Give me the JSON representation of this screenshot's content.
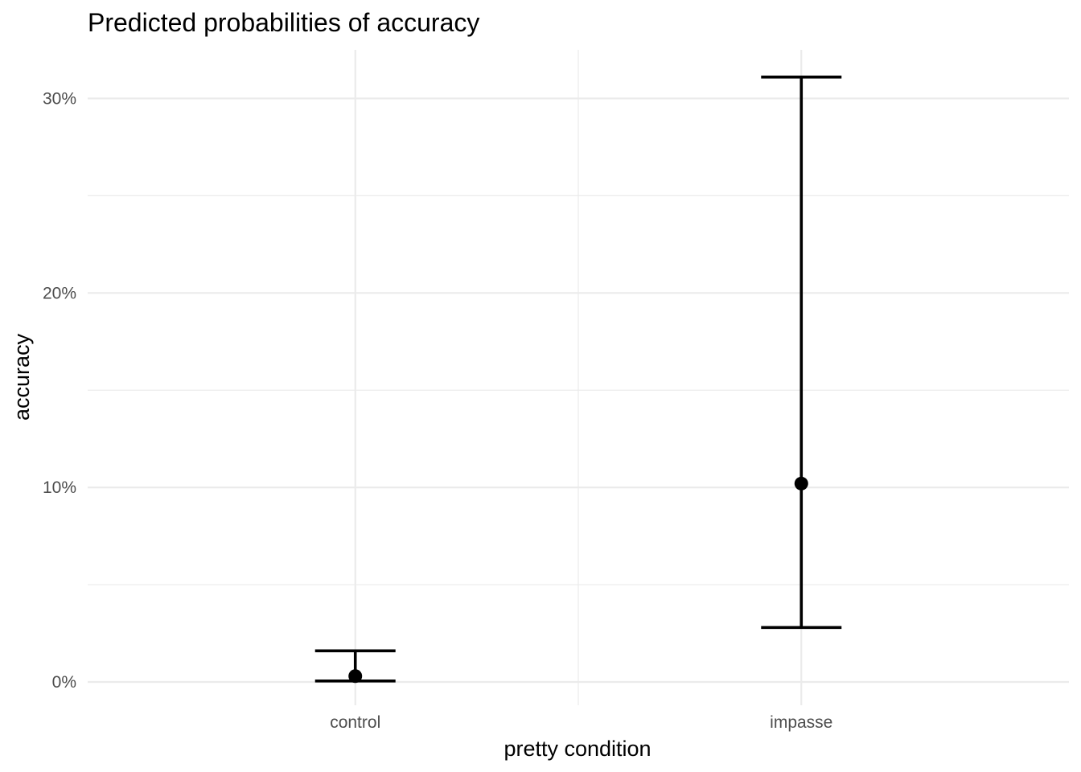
{
  "chart_data": {
    "type": "errorbar",
    "title": "Predicted probabilities of accuracy",
    "xlabel": "pretty condition",
    "ylabel": "accuracy",
    "categories": [
      "control",
      "impasse"
    ],
    "series": [
      {
        "estimate": [
          0.3,
          10.2
        ],
        "lower": [
          0.05,
          2.8
        ],
        "upper": [
          1.6,
          31.1
        ]
      }
    ],
    "ylim": [
      -1.2,
      32.5
    ],
    "y_ticks": [
      0,
      10,
      20,
      30
    ],
    "y_tick_labels": [
      "0%",
      "10%",
      "20%",
      "30%"
    ],
    "y_minor_ticks": [
      5,
      15,
      25
    ],
    "grid": true,
    "legend": "none",
    "colors": {
      "mark": "#000000",
      "grid": "#ebebeb",
      "tick_text": "#4d4d4d"
    }
  }
}
